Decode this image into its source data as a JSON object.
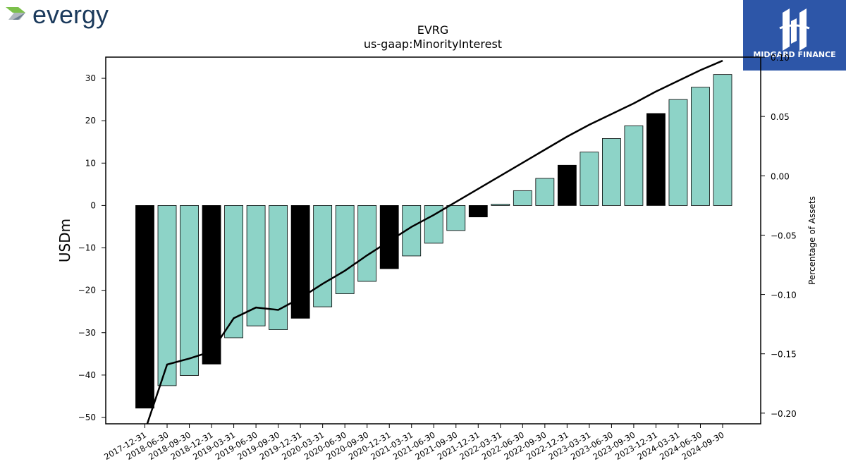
{
  "brand": {
    "company_logo_text": "evergy",
    "publisher_logo_text": "MIDGARD FINANCE"
  },
  "chart_data": {
    "type": "bar",
    "title": "EVRG",
    "subtitle": "us-gaap:MinorityInterest",
    "ylabel": "USDm",
    "y2label": "Percentage of Assets",
    "ylim": [
      -51.5,
      35
    ],
    "y2lim": [
      -0.209,
      0.1
    ],
    "yticks": [
      30,
      20,
      10,
      0,
      -10,
      -20,
      -30,
      -40,
      -50
    ],
    "y2ticks": [
      0.1,
      0.05,
      0.0,
      -0.05,
      -0.1,
      -0.15,
      -0.2
    ],
    "y2tick_labels": [
      "0.10",
      "0.05",
      "0.00",
      "−0.05",
      "−0.10",
      "−0.15",
      "−0.20"
    ],
    "categories": [
      "2017-12-31",
      "2018-06-30",
      "2018-09-30",
      "2018-12-31",
      "2019-03-31",
      "2019-06-30",
      "2019-09-30",
      "2019-12-31",
      "2020-03-31",
      "2020-06-30",
      "2020-09-30",
      "2020-12-31",
      "2021-03-31",
      "2021-06-30",
      "2021-09-30",
      "2021-12-31",
      "2022-03-31",
      "2022-06-30",
      "2022-09-30",
      "2022-12-31",
      "2023-03-31",
      "2023-06-30",
      "2023-09-30",
      "2023-12-31",
      "2024-03-31",
      "2024-06-30",
      "2024-09-30"
    ],
    "values": [
      -47.8,
      -42.5,
      -40.1,
      -37.4,
      -31.2,
      -28.4,
      -29.3,
      -26.6,
      -23.9,
      -20.8,
      -17.9,
      -14.9,
      -11.9,
      -8.9,
      -5.9,
      -2.7,
      0.3,
      3.5,
      6.4,
      9.5,
      12.6,
      15.8,
      18.8,
      21.7,
      25.0,
      27.9,
      30.9
    ],
    "bar_colors": [
      "#000000",
      "#8dd3c7",
      "#8dd3c7",
      "#000000",
      "#8dd3c7",
      "#8dd3c7",
      "#8dd3c7",
      "#000000",
      "#8dd3c7",
      "#8dd3c7",
      "#8dd3c7",
      "#000000",
      "#8dd3c7",
      "#8dd3c7",
      "#8dd3c7",
      "#000000",
      "#8dd3c7",
      "#8dd3c7",
      "#8dd3c7",
      "#000000",
      "#8dd3c7",
      "#8dd3c7",
      "#8dd3c7",
      "#000000",
      "#8dd3c7",
      "#8dd3c7",
      "#8dd3c7"
    ],
    "line_series": {
      "axis": "right",
      "color": "#000000",
      "values": [
        -0.215,
        -0.159,
        -0.154,
        -0.148,
        -0.12,
        -0.111,
        -0.113,
        -0.103,
        -0.091,
        -0.08,
        -0.067,
        -0.055,
        -0.043,
        -0.033,
        -0.022,
        -0.011,
        0.0,
        0.011,
        0.022,
        0.033,
        0.043,
        0.052,
        0.061,
        0.071,
        0.08,
        0.089,
        0.097
      ]
    },
    "colors": {
      "bar_fill": "#8dd3c7",
      "bar_annual": "#000000",
      "brand_navy": "#1b3a5c",
      "brand_green": "#7cc04b",
      "publisher_blue": "#2d56a8"
    },
    "grid": false
  }
}
